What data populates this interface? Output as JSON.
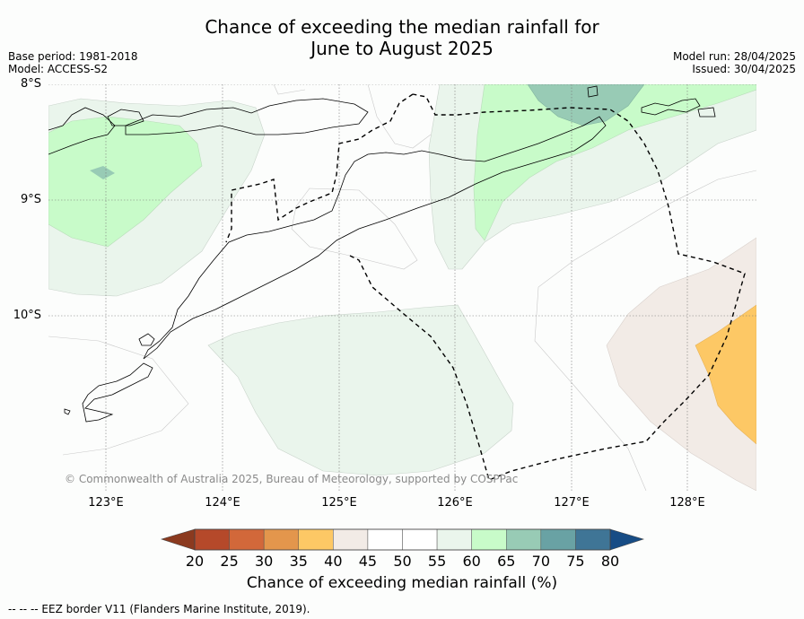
{
  "title": {
    "line1": "Chance of exceeding the median rainfall for",
    "line2": "June to August 2025"
  },
  "meta": {
    "base_period": "Base period: 1981-2018",
    "model": "Model: ACCESS-S2",
    "model_run": "Model run: 28/04/2025",
    "issued": "Issued: 30/04/2025"
  },
  "map": {
    "lat_ticks": [
      "8°S",
      "9°S",
      "10°S"
    ],
    "lon_ticks": [
      "123°E",
      "124°E",
      "125°E",
      "126°E",
      "127°E",
      "128°E"
    ],
    "copyright": "© Commonwealth of Australia 2025, Bureau of Meteorology, supported by COSPPac"
  },
  "colorbar": {
    "labels": [
      "20",
      "25",
      "30",
      "35",
      "40",
      "45",
      "50",
      "55",
      "60",
      "65",
      "70",
      "75",
      "80"
    ],
    "colors": [
      "#8b3a1f",
      "#b5492a",
      "#d2683a",
      "#e3964c",
      "#fdc865",
      "#f2ebe6",
      "#ffffff",
      "#ffffff",
      "#eaf5ec",
      "#c8fbc9",
      "#98cbb5",
      "#69a2a4",
      "#3f7596",
      "#174c85"
    ],
    "title": "Chance of exceeding median rainfall (%)"
  },
  "legend_note": "--  --  -- EEZ border V11 (Flanders Marine Institute, 2019)."
}
